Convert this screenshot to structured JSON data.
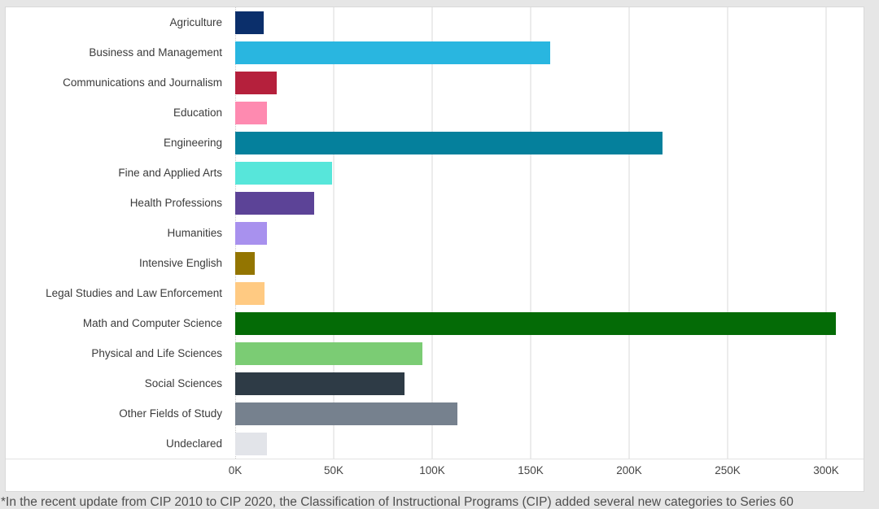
{
  "page": {
    "background_color": "#e6e6e6",
    "card_background": "#ffffff",
    "card_border_color": "#d9d9d9"
  },
  "caption": {
    "text": "*In the recent update from CIP 2010 to CIP 2020, the Classification of Instructional Programs (CIP) added several new categories to Series 60"
  },
  "colors": {
    "gridline": "#ececec",
    "zeroline": "#c9c9c9",
    "category_label_text": "#3b3b3b",
    "tick_label_text": "#444444",
    "caption_text": "#4f4f4f"
  },
  "chart_data": {
    "type": "bar",
    "orientation": "horizontal",
    "title": "",
    "xlabel": "",
    "ylabel": "",
    "legend": "none",
    "grid": "vertical",
    "categories": [
      "Agriculture",
      "Business and Management",
      "Communications and Journalism",
      "Education",
      "Engineering",
      "Fine and Applied Arts",
      "Health Professions",
      "Humanities",
      "Intensive English",
      "Legal Studies and Law Enforcement",
      "Math and Computer Science",
      "Physical and Life Sciences",
      "Social Sciences",
      "Other Fields of Study",
      "Undeclared"
    ],
    "values": [
      14500,
      160000,
      21000,
      16000,
      217000,
      49000,
      40000,
      16000,
      10000,
      15000,
      305000,
      95000,
      86000,
      113000,
      16000
    ],
    "bar_colors": [
      "#0b2f6b",
      "#29b6e0",
      "#b5203c",
      "#fe8ab0",
      "#05809c",
      "#57e6da",
      "#5c4397",
      "#a891ee",
      "#937501",
      "#ffca82",
      "#046b06",
      "#7bcc74",
      "#2e3b46",
      "#76818e",
      "#e2e4e9"
    ],
    "x_axis": {
      "tick_labels": [
        "0K",
        "50K",
        "100K",
        "150K",
        "200K",
        "250K",
        "300K"
      ],
      "tick_values": [
        0,
        50000,
        100000,
        150000,
        200000,
        250000,
        300000
      ],
      "range": [
        0,
        320000
      ]
    }
  }
}
